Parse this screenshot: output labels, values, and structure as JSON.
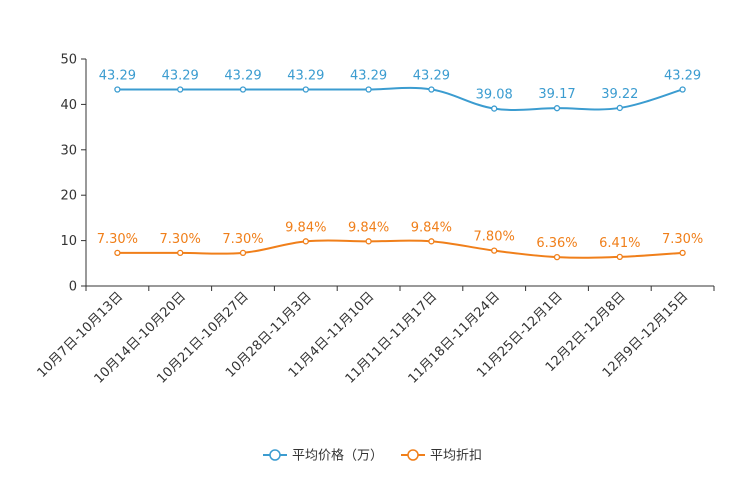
{
  "chart_data": {
    "type": "line",
    "title": "",
    "xlabel": "",
    "ylabel": "",
    "ylim": [
      0,
      50
    ],
    "yticks": [
      0,
      10,
      20,
      30,
      40,
      50
    ],
    "categories": [
      "10月7日-10月13日",
      "10月14日-10月20日",
      "10月21日-10月27日",
      "10月28日-11月3日",
      "11月4日-11月10日",
      "11月11日-11月17日",
      "11月18日-11月24日",
      "11月25日-12月1日",
      "12月2日-12月8日",
      "12月9日-12月15日"
    ],
    "series": [
      {
        "name": "平均价格（万）",
        "color": "#3b9cd0",
        "values": [
          43.29,
          43.29,
          43.29,
          43.29,
          43.29,
          43.29,
          39.08,
          39.17,
          39.22,
          43.29
        ],
        "labels": [
          "43.29",
          "43.29",
          "43.29",
          "43.29",
          "43.29",
          "43.29",
          "39.08",
          "39.17",
          "39.22",
          "43.29"
        ]
      },
      {
        "name": "平均折扣",
        "color": "#f07f1a",
        "values": [
          7.3,
          7.3,
          7.3,
          9.84,
          9.84,
          9.84,
          7.8,
          6.36,
          6.41,
          7.3
        ],
        "labels": [
          "7.30%",
          "7.30%",
          "7.30%",
          "9.84%",
          "9.84%",
          "9.84%",
          "7.80%",
          "6.36%",
          "6.41%",
          "7.30%"
        ]
      }
    ],
    "legend_position": "bottom-center"
  }
}
